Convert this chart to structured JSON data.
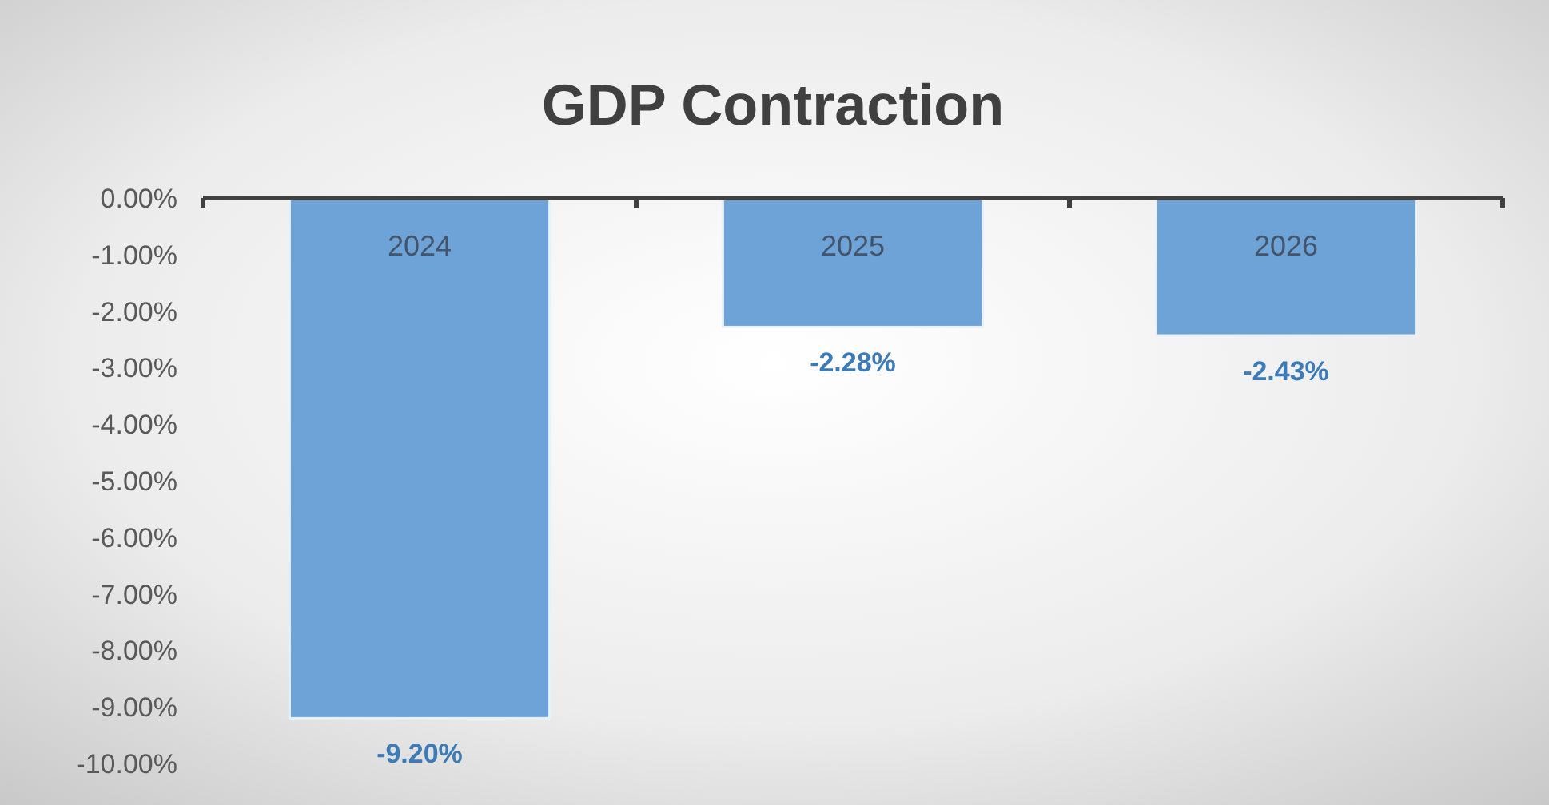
{
  "chart_data": {
    "type": "bar",
    "title": "GDP Contraction",
    "categories": [
      "2024",
      "2025",
      "2026"
    ],
    "values": [
      -9.2,
      -2.28,
      -2.43
    ],
    "value_labels": [
      "-9.20%",
      "-2.28%",
      "-2.43%"
    ],
    "color": "#6ea3d7",
    "ylim": [
      -10,
      0
    ],
    "yticks": [
      {
        "value": 0,
        "label": "0.00%"
      },
      {
        "value": -1,
        "label": "-1.00%"
      },
      {
        "value": -2,
        "label": "-2.00%"
      },
      {
        "value": -3,
        "label": "-3.00%"
      },
      {
        "value": -4,
        "label": "-4.00%"
      },
      {
        "value": -5,
        "label": "-5.00%"
      },
      {
        "value": -6,
        "label": "-6.00%"
      },
      {
        "value": -7,
        "label": "-7.00%"
      },
      {
        "value": -8,
        "label": "-8.00%"
      },
      {
        "value": -9,
        "label": "-9.00%"
      },
      {
        "value": -10,
        "label": "-10.00%"
      }
    ],
    "grid": false
  }
}
